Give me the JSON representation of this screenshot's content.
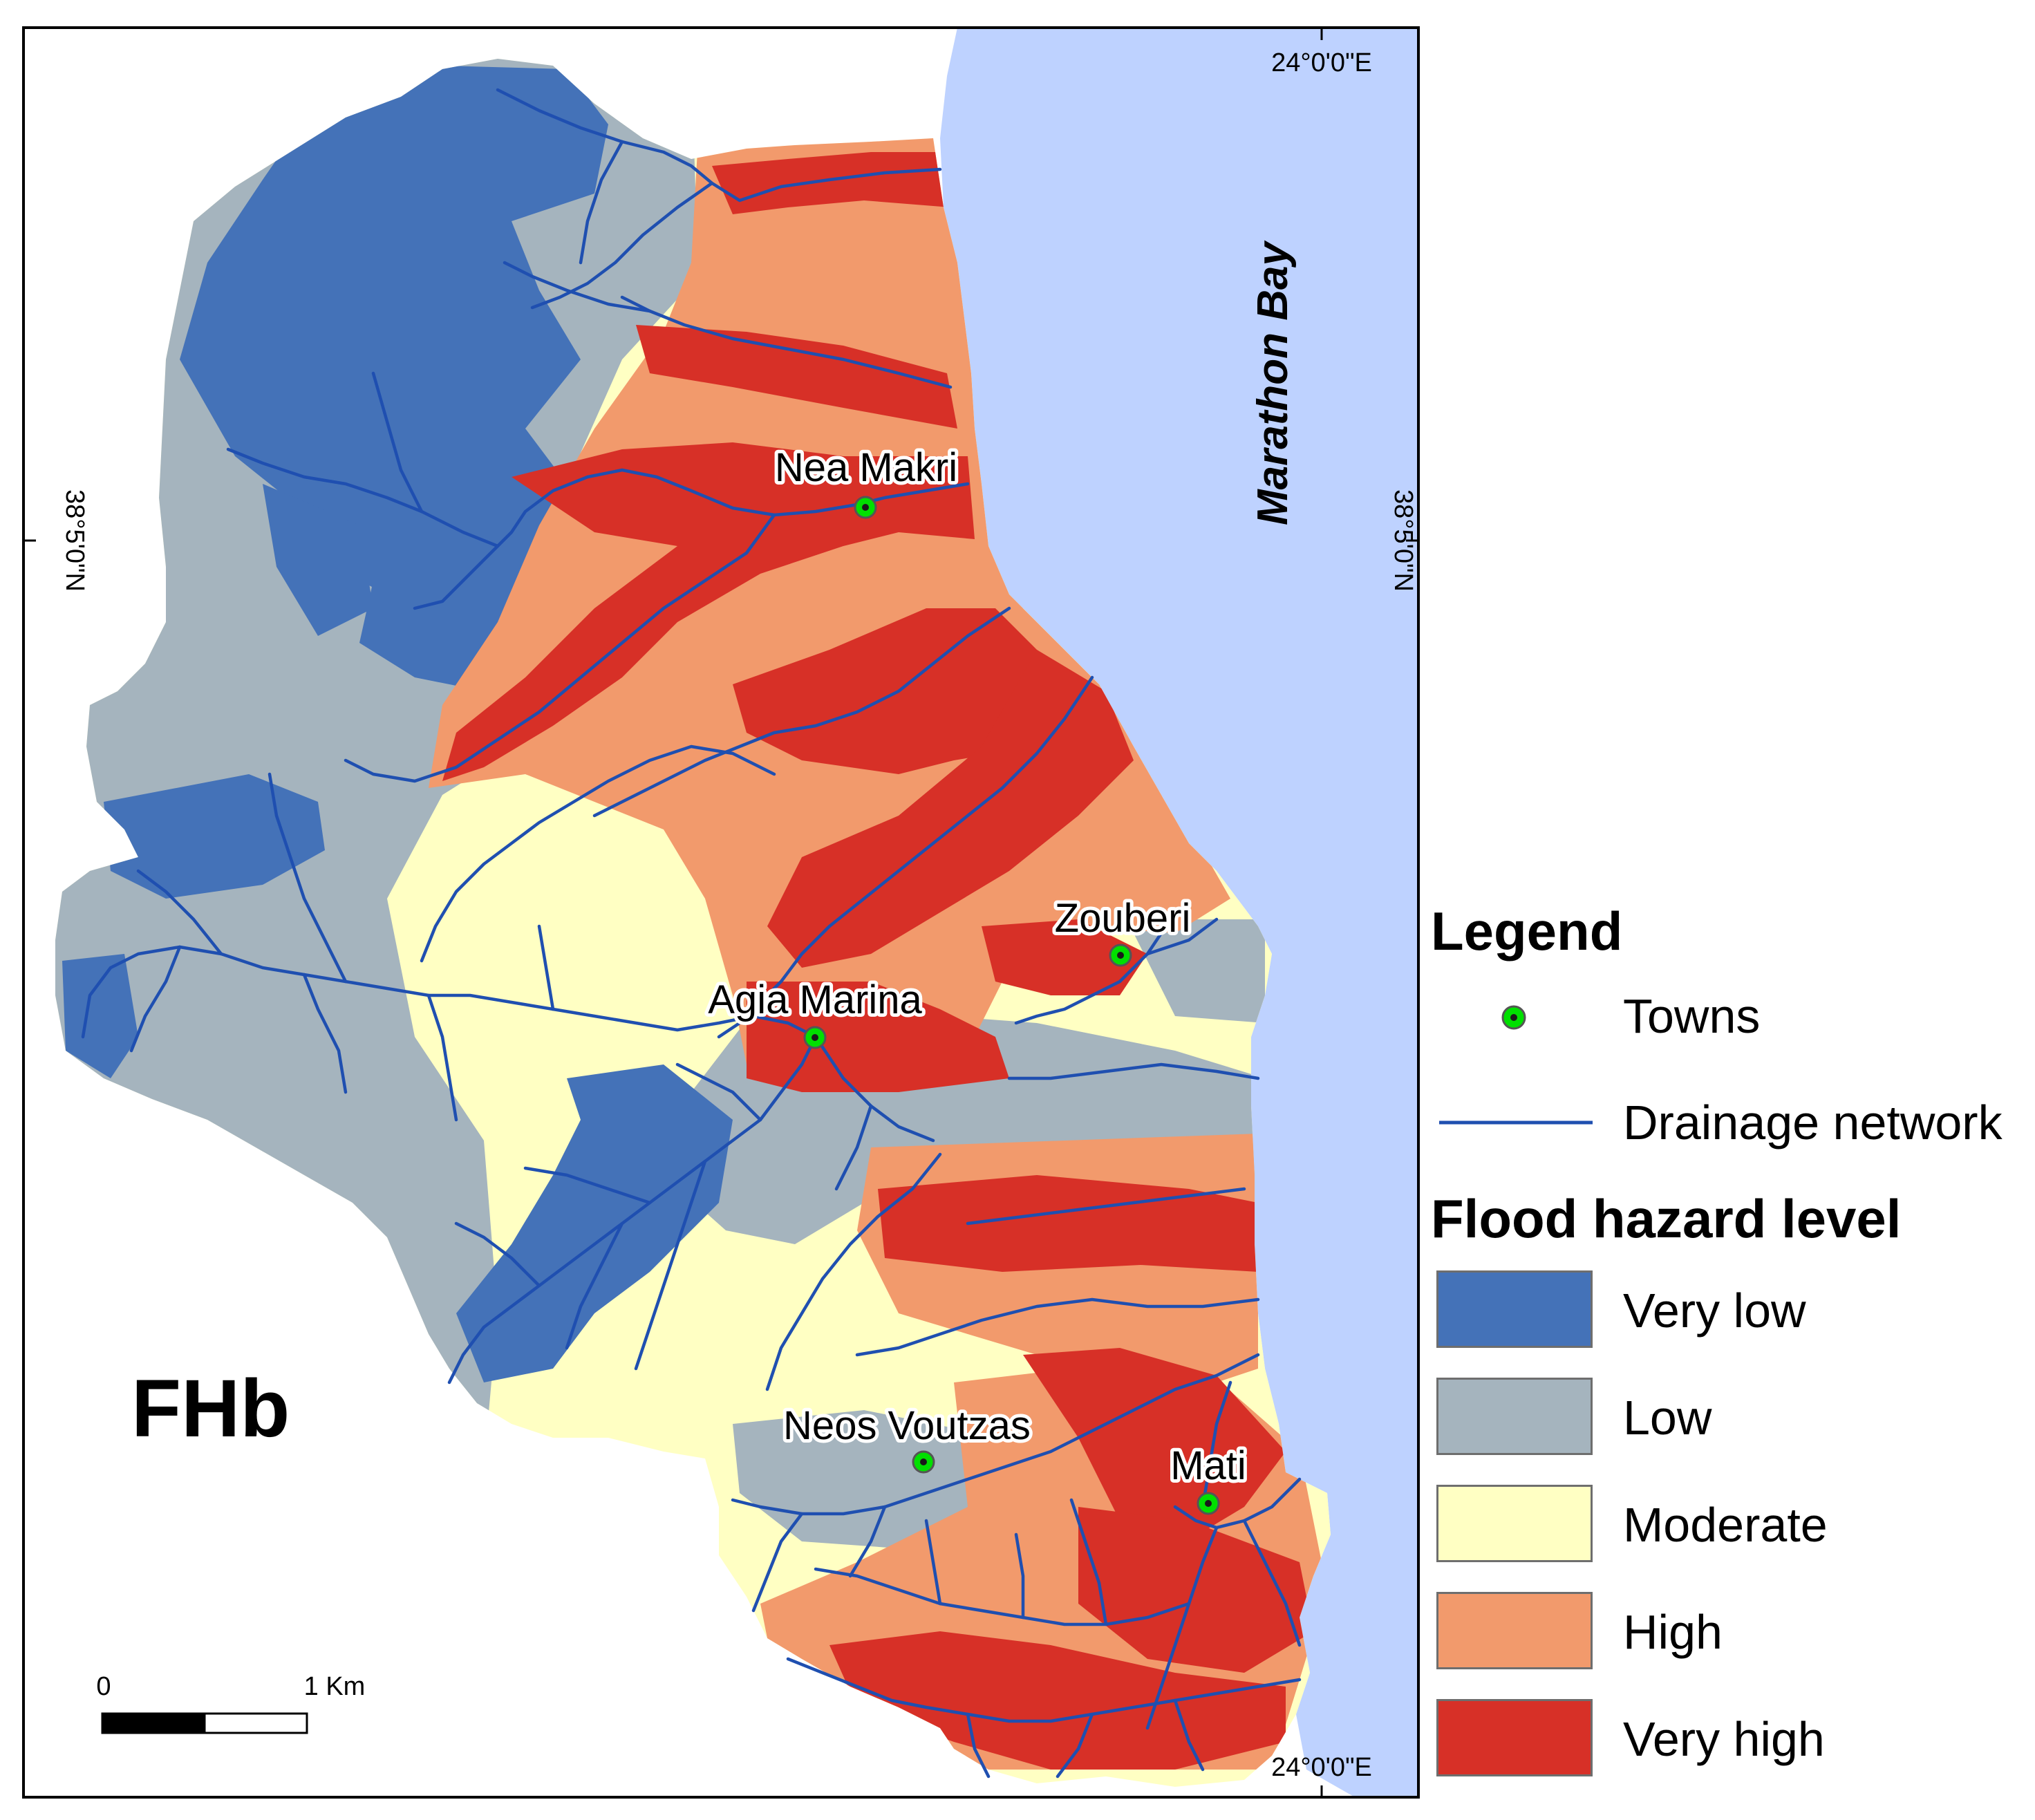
{
  "map": {
    "label": "FHb",
    "sea_name": "Marathon Bay",
    "coordinates": {
      "top_lon": "24°0'0\"E",
      "bottom_lon": "24°0'0\"E",
      "left_lat": "38°5'0\"N",
      "right_lat": "38°5'0\"N"
    },
    "towns": [
      {
        "name": "Nea Makri"
      },
      {
        "name": "Zouberi"
      },
      {
        "name": "Agia Marina"
      },
      {
        "name": "Neos Voutzas"
      },
      {
        "name": "Mati"
      }
    ],
    "scale_bar": {
      "start_label": "0",
      "end_label": "1 Km"
    }
  },
  "legend": {
    "title": "Legend",
    "towns_label": "Towns",
    "drainage_label": "Drainage network",
    "hazard_title": "Flood hazard level",
    "classes": [
      {
        "label": "Very low",
        "color": "#4472b8"
      },
      {
        "label": "Low",
        "color": "#a5b4be"
      },
      {
        "label": "Moderate",
        "color": "#ffffc3"
      },
      {
        "label": "High",
        "color": "#f29a6c"
      },
      {
        "label": "Very high",
        "color": "#d73027"
      }
    ]
  },
  "colors": {
    "sea": "#bed2ff",
    "drainage": "#1f4fb0",
    "town_marker": "#00e000"
  }
}
